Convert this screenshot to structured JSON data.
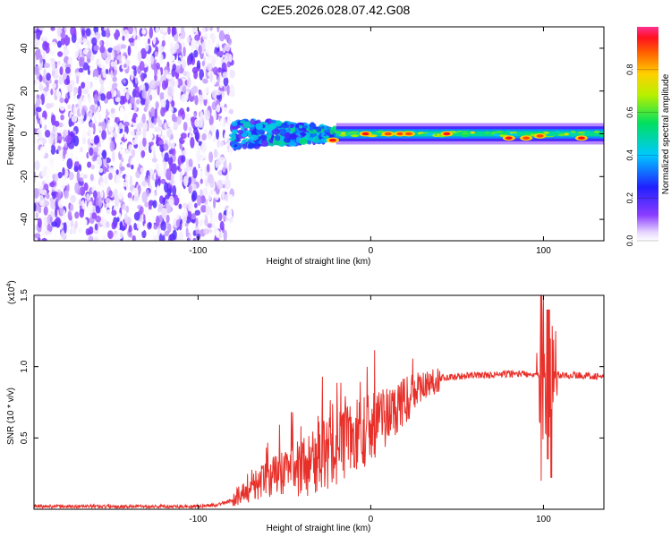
{
  "title": "C2E5.2026.028.07.42.G08",
  "colors": {
    "snr_line": "#e8302a",
    "frame": "#000000"
  },
  "chart_data": [
    {
      "type": "heatmap",
      "xlabel": "Height of straight line (km)",
      "ylabel": "Frequency (Hz)",
      "xlim": [
        -195,
        135
      ],
      "ylim": [
        -50,
        50
      ],
      "x_ticks": [
        -100,
        0,
        100
      ],
      "x_tick_labels": [
        "-100",
        "0",
        "100"
      ],
      "y_ticks": [
        -40,
        -20,
        0,
        20,
        40
      ],
      "y_tick_labels": [
        "-40",
        "-20",
        "0",
        "20",
        "40"
      ],
      "colorbar": {
        "label": "Normalized spectral amplitude",
        "range": [
          0,
          1
        ],
        "ticks": [
          0.0,
          0.2,
          0.4,
          0.6,
          0.8
        ],
        "tick_labels": [
          "0.0",
          "0.2",
          "0.4",
          "0.6",
          "0.8"
        ],
        "colormap": "rainbow"
      },
      "regions": [
        {
          "x_range": [
            -195,
            -80
          ],
          "freq_range": [
            -50,
            50
          ],
          "amplitude": 0.15,
          "pattern": "broadband noise"
        },
        {
          "x_range": [
            -80,
            -20
          ],
          "freq_range": [
            -7,
            7
          ],
          "amplitude": 0.4,
          "pattern": "narrowing band"
        },
        {
          "x_range": [
            -20,
            135
          ],
          "freq_range": [
            -3,
            3
          ],
          "amplitude": 0.6,
          "pattern": "narrow band at ~0 Hz"
        }
      ],
      "hotspots": [
        {
          "x": -22,
          "y": -3,
          "value": 0.95
        },
        {
          "x": -3,
          "y": 0,
          "value": 0.95
        },
        {
          "x": 10,
          "y": 0,
          "value": 0.9
        },
        {
          "x": 17,
          "y": 0,
          "value": 0.9
        },
        {
          "x": 22,
          "y": 0,
          "value": 0.9
        },
        {
          "x": 44,
          "y": 0,
          "value": 0.95
        },
        {
          "x": 80,
          "y": -2,
          "value": 0.95
        },
        {
          "x": 90,
          "y": -2,
          "value": 0.9
        },
        {
          "x": 98,
          "y": -1,
          "value": 0.9
        },
        {
          "x": 122,
          "y": -2,
          "value": 0.95
        }
      ]
    },
    {
      "type": "line",
      "xlabel": "Height of straight line (km)",
      "ylabel": "SNR (10 * v/v)",
      "y_multiplier_label": "(x10",
      "y_multiplier_exponent": "4",
      "y_multiplier_close": ")",
      "xlim": [
        -195,
        135
      ],
      "ylim": [
        0,
        1.5
      ],
      "x_ticks": [
        -100,
        0,
        100
      ],
      "x_tick_labels": [
        "-100",
        "0",
        "100"
      ],
      "y_ticks": [
        0.5,
        1.0,
        1.5
      ],
      "y_tick_labels": [
        "0.5",
        "1.0",
        "1.5"
      ],
      "series": [
        {
          "x": [
            -195,
            -150,
            -100,
            -90,
            -80,
            -75,
            -70,
            -60,
            -50,
            -40,
            -30,
            -20,
            -10,
            0,
            10,
            20,
            30,
            40,
            50,
            60,
            70,
            80,
            90,
            95,
            100,
            105,
            110,
            120,
            135
          ],
          "y": [
            0.02,
            0.02,
            0.02,
            0.03,
            0.06,
            0.1,
            0.14,
            0.22,
            0.25,
            0.3,
            0.36,
            0.42,
            0.5,
            0.58,
            0.66,
            0.76,
            0.86,
            0.92,
            0.93,
            0.94,
            0.94,
            0.95,
            0.95,
            0.95,
            0.93,
            0.95,
            0.94,
            0.94,
            0.93
          ]
        }
      ],
      "spikes": [
        {
          "x": 99,
          "y_min": 0.2,
          "y_max": 1.5
        },
        {
          "x": 103,
          "y_min": 0.35,
          "y_max": 1.4
        },
        {
          "x": 105,
          "y_min": 0.22,
          "y_max": 1.5
        }
      ]
    }
  ]
}
